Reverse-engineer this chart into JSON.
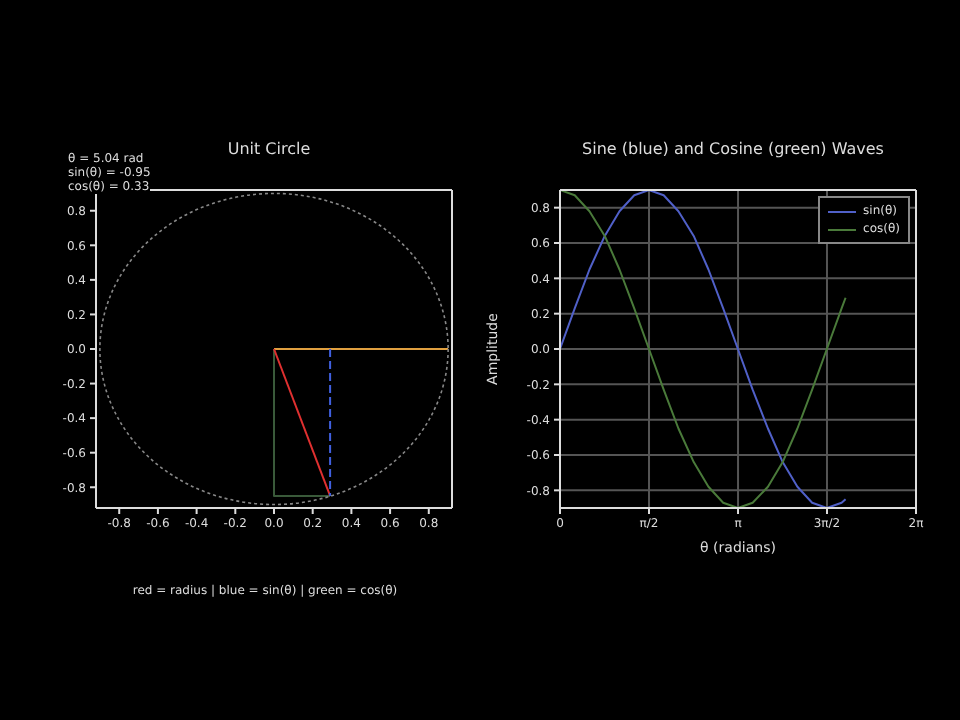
{
  "chart_data": [
    {
      "type": "line",
      "title": "Unit Circle",
      "annotations": [
        "θ = 5.04 rad",
        "sin(θ) = -0.95",
        "cos(θ) = 0.33",
        "red = radius | blue = sin(θ) | green = cos(θ)"
      ],
      "xlim": [
        -0.92,
        0.92
      ],
      "ylim": [
        -0.92,
        0.92
      ],
      "xticks": [
        -0.8,
        -0.6,
        -0.4,
        -0.2,
        {
          "value": 0,
          "label": "0.0"
        },
        0.2,
        0.4,
        0.6,
        0.8
      ],
      "yticks": [
        -0.8,
        -0.6,
        -0.4,
        -0.2,
        {
          "value": 0,
          "label": "0.0"
        },
        0.2,
        0.4,
        0.6,
        0.8
      ],
      "grid": false,
      "legend": false,
      "marker": "none",
      "series": [
        {
          "color": "#3a5a3a",
          "line_style": "solid",
          "x": [
            0,
            0,
            0.29
          ],
          "values": [
            0,
            -0.85,
            -0.85
          ]
        },
        {
          "color": "#e0a040",
          "line_style": "solid",
          "x": [
            0,
            0.9
          ],
          "values": [
            0,
            0
          ]
        },
        {
          "color": "#e03030",
          "line_style": "solid",
          "x": [
            0,
            0.29
          ],
          "values": [
            0,
            -0.85
          ]
        },
        {
          "color": "#4060e0",
          "line_style": "dashed",
          "x": [
            0.29,
            0.29
          ],
          "values": [
            0,
            -0.85
          ]
        }
      ]
    },
    {
      "type": "line",
      "title": "Sine (blue) and Cosine (green) Waves",
      "xlabel": "θ (radians)",
      "ylabel": "Amplitude",
      "xlim": [
        0,
        6.283
      ],
      "ylim": [
        -0.9,
        0.9
      ],
      "xticks": [
        0,
        {
          "value": 1.571,
          "label": "π/2"
        },
        {
          "value": 3.142,
          "label": "π"
        },
        {
          "value": 4.712,
          "label": "3π/2"
        },
        {
          "value": 6.283,
          "label": "2π"
        }
      ],
      "yticks": [
        -0.8,
        -0.6,
        -0.4,
        -0.2,
        {
          "value": 0,
          "label": "0.0"
        },
        0.2,
        0.4,
        0.6,
        0.8
      ],
      "grid": true,
      "legend": "top right",
      "marker": "none",
      "line_style": "solid",
      "x": [
        0,
        0.26,
        0.52,
        0.79,
        1.05,
        1.31,
        1.57,
        1.83,
        2.09,
        2.36,
        2.62,
        2.88,
        3.14,
        3.4,
        3.67,
        3.93,
        4.19,
        4.45,
        4.71,
        4.97,
        5.04
      ],
      "series": [
        {
          "name": "sin(θ)",
          "color": "#5060c8",
          "values": [
            0,
            0.23,
            0.45,
            0.64,
            0.78,
            0.87,
            0.9,
            0.87,
            0.78,
            0.64,
            0.45,
            0.23,
            0,
            -0.23,
            -0.45,
            -0.64,
            -0.78,
            -0.87,
            -0.9,
            -0.87,
            -0.85
          ]
        },
        {
          "name": "cos(θ)",
          "color": "#4a7a3a",
          "values": [
            0.9,
            0.87,
            0.78,
            0.64,
            0.45,
            0.23,
            0,
            -0.23,
            -0.45,
            -0.64,
            -0.78,
            -0.87,
            -0.9,
            -0.87,
            -0.78,
            -0.64,
            -0.45,
            -0.23,
            0,
            0.23,
            0.29
          ]
        }
      ]
    }
  ]
}
